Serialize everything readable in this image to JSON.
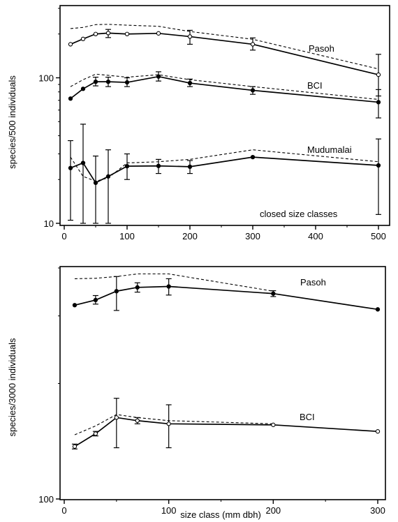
{
  "chart_data": [
    {
      "type": "line",
      "id": "top",
      "ylabel": "species/500  individuals",
      "xlabel": "",
      "xlim": [
        0,
        510
      ],
      "ylim": [
        10,
        300
      ],
      "yscale": "log",
      "x_ticks": [
        0,
        100,
        200,
        300,
        400,
        500
      ],
      "y_ticks": [
        10,
        100
      ],
      "annotation": "closed size classes",
      "series": [
        {
          "name": "Pasoh",
          "marker": "open",
          "x": [
            10,
            30,
            50,
            70,
            100,
            150,
            200,
            300,
            500
          ],
          "y": [
            170,
            185,
            200,
            203,
            200,
            202,
            192,
            170,
            105
          ],
          "dashed": [
            218,
            222,
            232,
            233,
            230,
            226,
            208,
            184,
            115
          ],
          "err": [
            null,
            null,
            null,
            [
              189,
              215
            ],
            null,
            null,
            [
              170,
              212
            ],
            [
              155,
              188
            ],
            [
              75,
              145
            ]
          ]
        },
        {
          "name": "BCI",
          "marker": "filled",
          "x": [
            10,
            30,
            50,
            70,
            100,
            150,
            200,
            300,
            500
          ],
          "y": [
            72,
            84,
            94,
            94,
            93,
            102,
            92,
            82,
            68
          ],
          "dashed": [
            87,
            97,
            106,
            104,
            101,
            105,
            97,
            87,
            71
          ],
          "err": [
            null,
            null,
            [
              88,
              101
            ],
            [
              87,
              101
            ],
            [
              87,
              100
            ],
            [
              95,
              110
            ],
            [
              87,
              98
            ],
            [
              77,
              87
            ],
            [
              53,
              83
            ]
          ]
        },
        {
          "name": "Mudumalai",
          "marker": "filled",
          "x": [
            10,
            30,
            50,
            70,
            100,
            150,
            200,
            300,
            500
          ],
          "y": [
            24,
            26,
            19,
            21,
            24.7,
            24.8,
            24.5,
            28.5,
            25
          ],
          "dashed": [
            28.5,
            21,
            19.5,
            20.5,
            26,
            26.5,
            27.5,
            32,
            26.5
          ],
          "err": [
            [
              10.5,
              37
            ],
            [
              10,
              48
            ],
            [
              10,
              29
            ],
            [
              10,
              32
            ],
            [
              20,
              30
            ],
            [
              22,
              27.5
            ],
            [
              22,
              27
            ],
            null,
            [
              11.5,
              38
            ]
          ]
        }
      ]
    },
    {
      "type": "line",
      "id": "bottom",
      "ylabel": "species/3000  individuals",
      "xlabel": "size class (mm dbh)",
      "xlim": [
        0,
        305
      ],
      "ylim": [
        100,
        400
      ],
      "yscale": "log",
      "x_ticks": [
        0,
        100,
        200,
        300
      ],
      "y_ticks": [
        100
      ],
      "series": [
        {
          "name": "Pasoh",
          "marker": "filled",
          "x": [
            10,
            30,
            50,
            70,
            100,
            200,
            300
          ],
          "y": [
            320,
            330,
            348,
            356,
            358,
            343,
            312
          ],
          "dashed": [
            375,
            376,
            380,
            386,
            386,
            348
          ],
          "dashed_x": [
            10,
            30,
            50,
            70,
            100,
            200
          ],
          "err": [
            null,
            [
              322,
              339
            ],
            [
              310,
              380
            ],
            [
              346,
              366
            ],
            [
              340,
              375
            ],
            [
              337,
              349
            ],
            null
          ]
        },
        {
          "name": "BCI",
          "marker": "open",
          "x": [
            10,
            30,
            50,
            70,
            100,
            200,
            300
          ],
          "y": [
            137,
            148,
            163,
            160,
            157,
            156,
            150
          ],
          "dashed": [
            147,
            155,
            166,
            163,
            160,
            157
          ],
          "dashed_x": [
            10,
            30,
            50,
            70,
            100,
            200
          ],
          "err": [
            [
              135,
              139
            ],
            [
              146,
              150
            ],
            [
              136,
              183
            ],
            [
              157,
              163
            ],
            [
              136,
              176
            ],
            null,
            null
          ]
        }
      ]
    }
  ]
}
